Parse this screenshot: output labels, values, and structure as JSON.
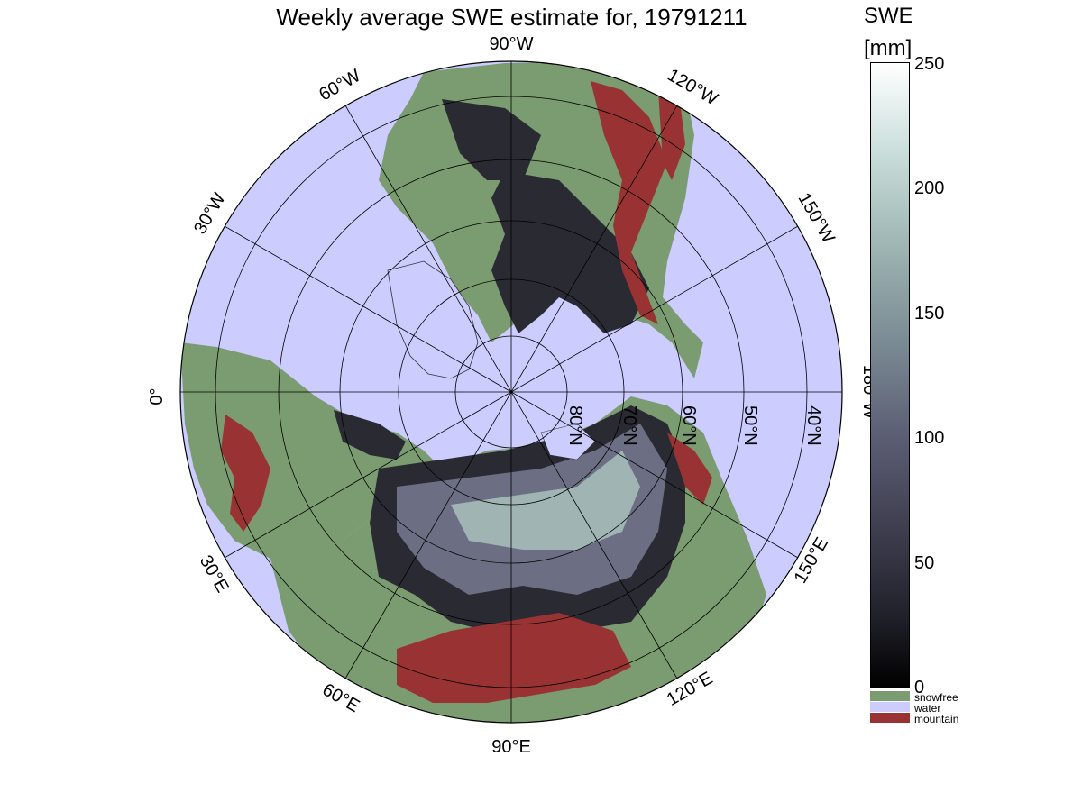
{
  "title": "Weekly average SWE estimate for, 19791211",
  "colorbar": {
    "title_line1": "SWE",
    "title_line2": "[mm]",
    "ticks": [
      "250",
      "200",
      "150",
      "100",
      "50",
      "0"
    ],
    "categories": [
      {
        "label": "snowfree",
        "color": "#7a9c70"
      },
      {
        "label": "water",
        "color": "#ccccff"
      },
      {
        "label": "mountain",
        "color": "#993333"
      }
    ]
  },
  "map": {
    "projection": "north-polar-stereographic",
    "colors": {
      "water": "#ccccff",
      "snowfree": "#7a9c70",
      "mountain": "#993333",
      "shallow_snow": "#2a2a33",
      "mid_snow": "#6c6e84",
      "deep_snow": "#9fb4b3"
    },
    "longitude_labels": [
      "90°W",
      "120°W",
      "150°W",
      "180°W",
      "150°E",
      "120°E",
      "90°E",
      "60°E",
      "30°E",
      "0°",
      "30°W",
      "60°W"
    ],
    "latitude_labels": [
      "80°N",
      "70°N",
      "60°N",
      "50°N",
      "40°N"
    ]
  }
}
